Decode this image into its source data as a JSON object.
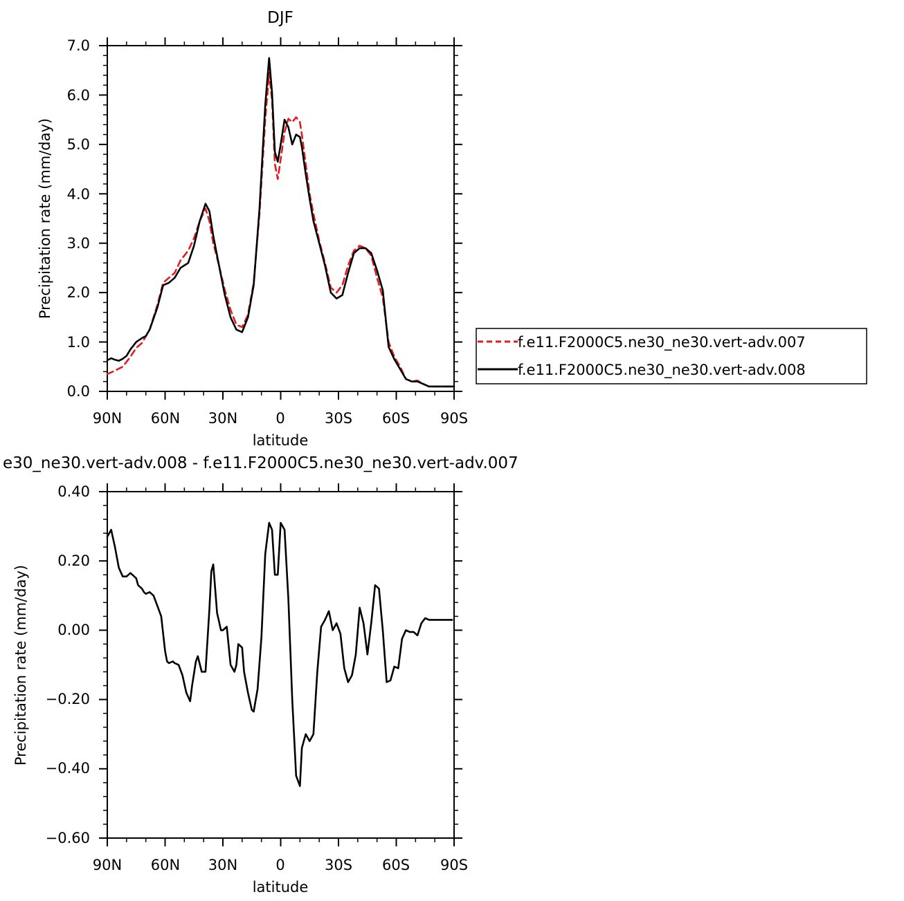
{
  "colors": {
    "run007": "#e41a1c",
    "run008": "#000000"
  },
  "chart_data": [
    {
      "type": "line",
      "title": "DJF",
      "xlabel": "latitude",
      "ylabel": "Precipitation rate (mm/day)",
      "xlim": [
        90,
        -90
      ],
      "ylim": [
        0,
        7
      ],
      "xticks": [
        {
          "v": 90,
          "label": "90N"
        },
        {
          "v": 60,
          "label": "60N"
        },
        {
          "v": 30,
          "label": "30N"
        },
        {
          "v": 0,
          "label": "0"
        },
        {
          "v": -30,
          "label": "30S"
        },
        {
          "v": -60,
          "label": "60S"
        },
        {
          "v": -90,
          "label": "90S"
        }
      ],
      "yticks": [
        {
          "v": 0,
          "label": "0.0"
        },
        {
          "v": 1,
          "label": "1.0"
        },
        {
          "v": 2,
          "label": "2.0"
        },
        {
          "v": 3,
          "label": "3.0"
        },
        {
          "v": 4,
          "label": "4.0"
        },
        {
          "v": 5,
          "label": "5.0"
        },
        {
          "v": 6,
          "label": "6.0"
        },
        {
          "v": 7,
          "label": "7.0"
        }
      ],
      "legend": "right",
      "series": [
        {
          "name": "f.e11.F2000C5.ne30_ne30.vert-adv.007",
          "color": "#e41a1c",
          "dash": "dashed",
          "x": [
            90,
            86,
            82,
            78,
            75,
            72,
            68,
            64,
            61,
            58,
            55,
            52,
            48,
            45,
            42,
            39,
            37,
            35,
            32,
            29,
            26,
            23,
            20,
            17,
            14,
            11,
            8,
            6,
            4.5,
            3,
            1.5,
            0,
            -2,
            -4,
            -6,
            -8,
            -10,
            -11,
            -13,
            -15,
            -17,
            -20,
            -23,
            -26,
            -29,
            -32,
            -35,
            -38,
            -41,
            -44,
            -47,
            -50,
            -53,
            -56,
            -59,
            -62,
            -65,
            -68,
            -71,
            -74,
            -77,
            -80,
            -83,
            -86,
            -88,
            -90
          ],
          "y": [
            0.35,
            0.42,
            0.5,
            0.7,
            0.88,
            0.98,
            1.25,
            1.75,
            2.2,
            2.3,
            2.4,
            2.65,
            2.85,
            3.1,
            3.45,
            3.7,
            3.45,
            3.0,
            2.55,
            2.05,
            1.65,
            1.35,
            1.3,
            1.55,
            2.2,
            3.6,
            5.5,
            6.45,
            5.9,
            4.6,
            4.3,
            4.7,
            5.25,
            5.52,
            5.45,
            5.55,
            5.45,
            5.2,
            4.6,
            4.0,
            3.6,
            3.05,
            2.6,
            2.1,
            2.0,
            2.15,
            2.55,
            2.85,
            2.95,
            2.9,
            2.75,
            2.3,
            1.9,
            1.0,
            0.7,
            0.5,
            0.25,
            0.2,
            0.22,
            0.15,
            0.1,
            0.1,
            0.1,
            0.1,
            0.1,
            0.1
          ]
        },
        {
          "name": "f.e11.F2000C5.ne30_ne30.vert-adv.008",
          "color": "#000000",
          "dash": "solid",
          "x": [
            90,
            88,
            86,
            84,
            82,
            80,
            78,
            75,
            72,
            70,
            68,
            64,
            61,
            58,
            55,
            52,
            48,
            45,
            42,
            39,
            37,
            35,
            32,
            29,
            26,
            23,
            20,
            17,
            14,
            11,
            8,
            6,
            4.5,
            3,
            1.5,
            0,
            -2,
            -4,
            -6,
            -8,
            -10,
            -11,
            -13,
            -15,
            -17,
            -20,
            -23,
            -26,
            -29,
            -32,
            -35,
            -38,
            -41,
            -44,
            -47,
            -50,
            -53,
            -56,
            -59,
            -62,
            -65,
            -68,
            -71,
            -74,
            -77,
            -80,
            -83,
            -86,
            -88,
            -90
          ],
          "y": [
            0.63,
            0.67,
            0.64,
            0.62,
            0.66,
            0.72,
            0.85,
            1.0,
            1.08,
            1.12,
            1.25,
            1.7,
            2.15,
            2.2,
            2.3,
            2.5,
            2.6,
            2.95,
            3.45,
            3.8,
            3.65,
            3.15,
            2.55,
            1.95,
            1.5,
            1.25,
            1.2,
            1.5,
            2.15,
            3.7,
            5.8,
            6.75,
            6.05,
            4.85,
            4.65,
            5.0,
            5.5,
            5.35,
            5.0,
            5.2,
            5.15,
            4.95,
            4.4,
            3.9,
            3.45,
            3.0,
            2.55,
            2.0,
            1.88,
            1.95,
            2.4,
            2.8,
            2.9,
            2.9,
            2.8,
            2.45,
            2.05,
            0.9,
            0.65,
            0.45,
            0.25,
            0.2,
            0.2,
            0.15,
            0.1,
            0.1,
            0.1,
            0.1,
            0.1,
            0.1
          ]
        }
      ]
    },
    {
      "type": "line",
      "title": "e30_ne30.vert-adv.008 - f.e11.F2000C5.ne30_ne30.vert-adv.007",
      "xlabel": "latitude",
      "ylabel": "Precipitation rate (mm/day)",
      "xlim": [
        90,
        -90
      ],
      "ylim": [
        -0.6,
        0.4
      ],
      "xticks": [
        {
          "v": 90,
          "label": "90N"
        },
        {
          "v": 60,
          "label": "60N"
        },
        {
          "v": 30,
          "label": "30N"
        },
        {
          "v": 0,
          "label": "0"
        },
        {
          "v": -30,
          "label": "30S"
        },
        {
          "v": -60,
          "label": "60S"
        },
        {
          "v": -90,
          "label": "90S"
        }
      ],
      "yticks": [
        {
          "v": 0.4,
          "label": "0.40"
        },
        {
          "v": 0.2,
          "label": "0.20"
        },
        {
          "v": 0,
          "label": "0.00"
        },
        {
          "v": -0.2,
          "label": "−0.20"
        },
        {
          "v": -0.4,
          "label": "−0.40"
        },
        {
          "v": -0.6,
          "label": "−0.60"
        }
      ],
      "series": [
        {
          "name": "",
          "color": "#000000",
          "dash": "solid",
          "x": [
            90,
            88,
            86,
            84,
            82,
            80,
            78,
            77,
            75,
            74,
            72,
            71,
            70,
            68,
            66,
            64,
            62,
            60,
            59,
            58,
            56,
            55,
            53,
            51,
            49,
            47,
            46,
            44,
            43,
            41,
            39,
            37,
            36,
            35,
            33,
            31,
            30,
            28,
            26,
            24,
            23,
            22,
            20,
            19,
            17,
            15,
            14,
            12,
            10,
            8,
            6,
            4.5,
            3,
            1.5,
            0,
            -2,
            -4,
            -6,
            -8,
            -10,
            -11,
            -13,
            -15,
            -17,
            -19,
            -21,
            -23,
            -25,
            -27,
            -29,
            -31,
            -33,
            -35,
            -37,
            -39,
            -41,
            -43,
            -45,
            -47,
            -49,
            -51,
            -53,
            -55,
            -57,
            -59,
            -61,
            -63,
            -65,
            -67,
            -69,
            -71,
            -73,
            -75,
            -77,
            -79,
            -81,
            -83,
            -85,
            -87,
            -89
          ],
          "y": [
            0.27,
            0.29,
            0.24,
            0.18,
            0.155,
            0.155,
            0.165,
            0.16,
            0.15,
            0.13,
            0.12,
            0.11,
            0.105,
            0.11,
            0.1,
            0.07,
            0.04,
            -0.06,
            -0.09,
            -0.095,
            -0.09,
            -0.095,
            -0.1,
            -0.13,
            -0.18,
            -0.205,
            -0.16,
            -0.09,
            -0.075,
            -0.12,
            -0.12,
            0.06,
            0.17,
            0.19,
            0.05,
            0.0,
            0.0,
            0.01,
            -0.1,
            -0.12,
            -0.1,
            -0.04,
            -0.05,
            -0.12,
            -0.18,
            -0.23,
            -0.235,
            -0.17,
            -0.02,
            0.22,
            0.31,
            0.29,
            0.16,
            0.16,
            0.31,
            0.29,
            0.09,
            -0.2,
            -0.42,
            -0.45,
            -0.34,
            -0.3,
            -0.32,
            -0.3,
            -0.12,
            0.01,
            0.03,
            0.055,
            0.0,
            0.02,
            -0.01,
            -0.11,
            -0.15,
            -0.13,
            -0.07,
            0.065,
            0.02,
            -0.07,
            0.02,
            0.13,
            0.12,
            0.0,
            -0.15,
            -0.145,
            -0.105,
            -0.11,
            -0.025,
            0.0,
            -0.005,
            -0.005,
            -0.015,
            0.02,
            0.035,
            0.03,
            0.03,
            0.03,
            0.03,
            0.03,
            0.03,
            0.03
          ]
        }
      ]
    }
  ]
}
